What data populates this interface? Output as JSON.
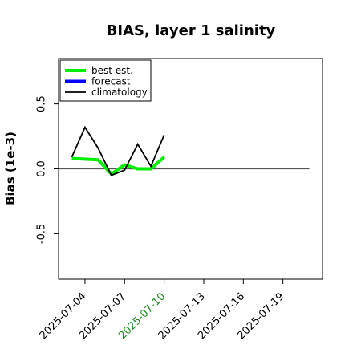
{
  "chart_data": {
    "type": "line",
    "title": "BIAS, layer 1 salinity",
    "ylabel": "Bias (1e-3)",
    "xlabel": "",
    "ylim": [
      -0.85,
      0.85
    ],
    "xlim": [
      "2025-07-02",
      "2025-07-22"
    ],
    "y_ticks": [
      -0.5,
      0.0,
      0.5
    ],
    "y_tick_labels": [
      "-0.5",
      "0.0",
      "0.5"
    ],
    "x_ticks": [
      "2025-07-04",
      "2025-07-07",
      "2025-07-10",
      "2025-07-13",
      "2025-07-16",
      "2025-07-19"
    ],
    "x_tick_labels": [
      "2025-07-04",
      "2025-07-07",
      "2025-07-10",
      "2025-07-13",
      "2025-07-16",
      "2025-07-19"
    ],
    "highlighted_tick": "2025-07-10",
    "highlight_color": "#228b22",
    "grid": false,
    "legend_position": "top-left",
    "reference_line": {
      "y": 0.0,
      "x_from": "2025-07-02",
      "x_to": "2025-07-21",
      "color": "#555555"
    },
    "series": [
      {
        "name": "best est.",
        "color": "#00ee00",
        "x": [
          "2025-07-03",
          "2025-07-04",
          "2025-07-05",
          "2025-07-06",
          "2025-07-07",
          "2025-07-08",
          "2025-07-09",
          "2025-07-10"
        ],
        "y": [
          0.08,
          0.075,
          0.07,
          -0.04,
          0.03,
          0.0,
          0.0,
          0.09
        ]
      },
      {
        "name": "forecast",
        "color": "#0000ff",
        "x": [],
        "y": []
      },
      {
        "name": "climatology",
        "color": "#000000",
        "x": [
          "2025-07-03",
          "2025-07-04",
          "2025-07-05",
          "2025-07-06",
          "2025-07-07",
          "2025-07-08",
          "2025-07-09",
          "2025-07-10"
        ],
        "y": [
          0.09,
          0.32,
          0.16,
          -0.05,
          -0.01,
          0.19,
          0.02,
          0.26
        ]
      }
    ]
  }
}
